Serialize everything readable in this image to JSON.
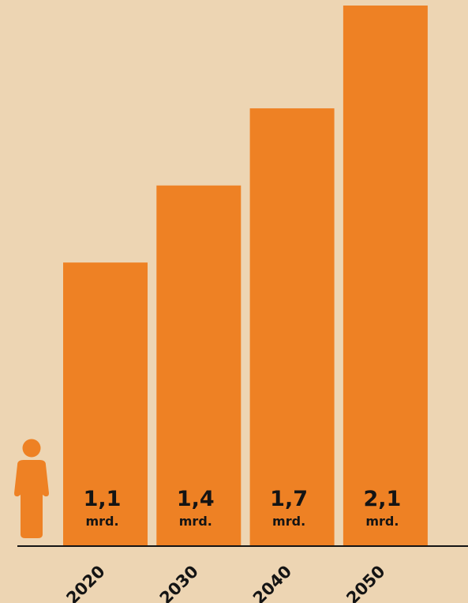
{
  "colors": {
    "background": "#EDD5B3",
    "bar": "#EE8124",
    "text": "#141414",
    "axis": "#141414"
  },
  "icons": {
    "person": "person-icon"
  },
  "chart_data": {
    "type": "bar",
    "categories": [
      "2020",
      "2030",
      "2040",
      "2050"
    ],
    "values": [
      1.1,
      1.4,
      1.7,
      2.1
    ],
    "value_labels": [
      "1,1",
      "1,4",
      "1,7",
      "2,1"
    ],
    "unit": "mrd.",
    "ylim": [
      0,
      2.1
    ],
    "grid": false,
    "legend": "none",
    "tick_rotation": "-45"
  }
}
